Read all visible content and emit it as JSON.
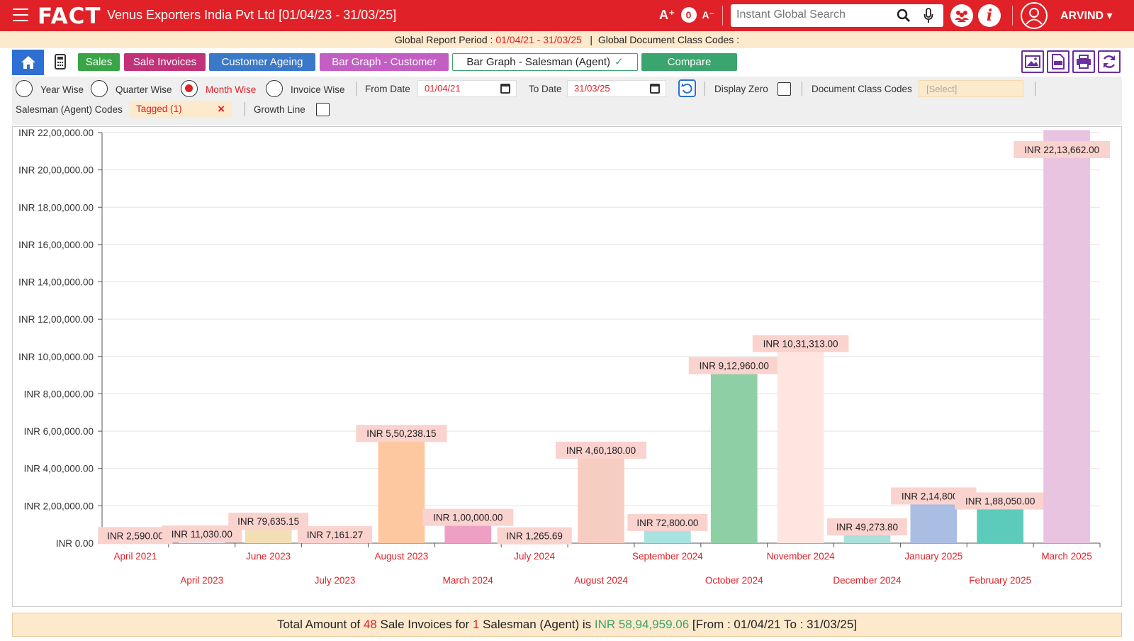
{
  "app": {
    "logo": "FACT",
    "company": "Venus Exporters India Pvt Ltd [01/04/23 - 31/03/25]",
    "font_increase": "A⁺",
    "font_reset": "0",
    "font_decrease": "A⁻",
    "search_placeholder": "Instant Global Search",
    "username": "ARVIND ▾"
  },
  "subbar": {
    "period_label": "Global Report Period : ",
    "period_value": "01/04/21 - 31/03/25",
    "doc_codes_label": "Global Document Class Codes :"
  },
  "toolbar": {
    "buttons": [
      {
        "label": "Sales",
        "color": "#3aa547"
      },
      {
        "label": "Sale Invoices",
        "color": "#c0327a"
      },
      {
        "label": "Customer Ageing",
        "color": "#3a78c8"
      },
      {
        "label": "Bar Graph - Customer",
        "color": "#c35ec5"
      },
      {
        "label": "Bar Graph - Salesman (Agent)",
        "color": "#ffffff"
      },
      {
        "label": "Compare",
        "color": "#3aa56e"
      }
    ],
    "active_check": "✓"
  },
  "filters": {
    "year_wise": "Year Wise",
    "quarter_wise": "Quarter Wise",
    "month_wise": "Month Wise",
    "invoice_wise": "Invoice Wise",
    "from_date_label": "From Date",
    "from_date": "01/04/21",
    "to_date_label": "To Date",
    "to_date": "31/03/25",
    "display_zero": "Display Zero",
    "doc_class_codes": "Document Class Codes",
    "doc_class_placeholder": "[Select]",
    "salesman_codes": "Salesman (Agent) Codes",
    "tagged": "Tagged (1)",
    "clear": "×",
    "growth_line": "Growth Line"
  },
  "chart_data": {
    "type": "bar",
    "categories": [
      "April 2021",
      "April 2023",
      "June 2023",
      "July 2023",
      "August 2023",
      "March 2024",
      "July 2024",
      "August 2024",
      "September 2024",
      "October 2024",
      "November 2024",
      "December 2024",
      "January 2025",
      "February 2025",
      "March 2025"
    ],
    "values": [
      2590,
      11030,
      79635.15,
      7161.27,
      550238.15,
      100000,
      1265.69,
      460180,
      72800,
      912960,
      1031313,
      49273.8,
      214800,
      188050,
      2213662
    ],
    "value_labels": [
      "INR 2,590.00",
      "INR 11,030.00",
      "INR 79,635.15",
      "INR 7,161.27",
      "INR 5,50,238.15",
      "INR 1,00,000.00",
      "INR 1,265.69",
      "INR 4,60,180.00",
      "INR 72,800.00",
      "INR 9,12,960.00",
      "INR 10,31,313.00",
      "INR 49,273.80",
      "INR 2,14,800.0",
      "INR 1,88,050.00",
      "INR 22,13,662.00"
    ],
    "colors": [
      "#d9dde8",
      "#dbecf5",
      "#f3dfb6",
      "#d6ece4",
      "#fdc8a0",
      "#ee9fc4",
      "#f5e2e2",
      "#f8cdc1",
      "#a9e3e0",
      "#8fcfa6",
      "#ffe5df",
      "#abe0da",
      "#aabde3",
      "#5ccbbb",
      "#e8c4e1"
    ],
    "yticks": [
      "INR 0.00",
      "INR 2,00,000.00",
      "INR 4,00,000.00",
      "INR 6,00,000.00",
      "INR 8,00,000.00",
      "INR 10,00,000.00",
      "INR 12,00,000.00",
      "INR 14,00,000.00",
      "INR 16,00,000.00",
      "INR 18,00,000.00",
      "INR 20,00,000.00",
      "INR 22,00,000.00"
    ],
    "ylim": [
      0,
      2200000
    ],
    "grid": true,
    "xlabel": "",
    "ylabel": ""
  },
  "footer": {
    "t1": "Total Amount of ",
    "count": "48",
    "t2": " Sale Invoices for ",
    "salesman_count": "1",
    "t3": " Salesman (Agent) is ",
    "amount": "INR 58,94,959.06",
    "range": " [From : 01/04/21 To : 31/03/25]"
  }
}
